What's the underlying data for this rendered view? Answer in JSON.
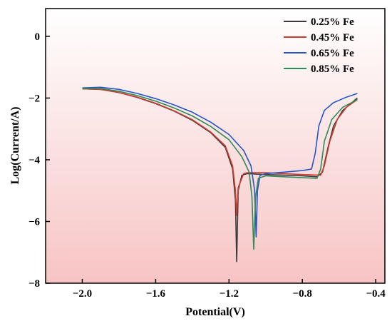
{
  "chart_data": {
    "type": "line",
    "title": "",
    "xlabel": "Potential(V)",
    "ylabel": "Log(Current/A)",
    "xlim": [
      -2.2,
      -0.35
    ],
    "ylim": [
      -8,
      0.9
    ],
    "xticks": [
      -2.0,
      -1.6,
      -1.2,
      -0.8,
      -0.4
    ],
    "xtick_labels": [
      "−2.0",
      "−1.6",
      "−1.2",
      "−0.8",
      "−0.4"
    ],
    "yticks": [
      0,
      -2,
      -4,
      -6,
      -8
    ],
    "ytick_labels": [
      "0",
      "−2",
      "−4",
      "−6",
      "−8"
    ],
    "grid": false,
    "legend_position": "top-right",
    "background": {
      "gradient_top": "#ffffff",
      "gradient_bottom": "#f7c4c4"
    },
    "series": [
      {
        "name": "0.25% Fe",
        "color": "#3a3a3a",
        "points": [
          [
            -2.0,
            -1.7
          ],
          [
            -1.9,
            -1.72
          ],
          [
            -1.8,
            -1.82
          ],
          [
            -1.7,
            -1.98
          ],
          [
            -1.6,
            -2.18
          ],
          [
            -1.5,
            -2.42
          ],
          [
            -1.4,
            -2.72
          ],
          [
            -1.3,
            -3.12
          ],
          [
            -1.22,
            -3.6
          ],
          [
            -1.18,
            -4.3
          ],
          [
            -1.165,
            -5.3
          ],
          [
            -1.158,
            -7.3
          ],
          [
            -1.15,
            -5.0
          ],
          [
            -1.13,
            -4.5
          ],
          [
            -1.1,
            -4.45
          ],
          [
            -1.0,
            -4.48
          ],
          [
            -0.9,
            -4.5
          ],
          [
            -0.8,
            -4.52
          ],
          [
            -0.72,
            -4.55
          ],
          [
            -0.69,
            -4.4
          ],
          [
            -0.66,
            -3.6
          ],
          [
            -0.63,
            -2.9
          ],
          [
            -0.58,
            -2.4
          ],
          [
            -0.5,
            -2.0
          ]
        ]
      },
      {
        "name": "0.45% Fe",
        "color": "#cc3b2e",
        "points": [
          [
            -2.0,
            -1.7
          ],
          [
            -1.9,
            -1.72
          ],
          [
            -1.8,
            -1.82
          ],
          [
            -1.7,
            -1.97
          ],
          [
            -1.6,
            -2.17
          ],
          [
            -1.5,
            -2.41
          ],
          [
            -1.4,
            -2.7
          ],
          [
            -1.3,
            -3.1
          ],
          [
            -1.22,
            -3.55
          ],
          [
            -1.18,
            -4.2
          ],
          [
            -1.165,
            -5.0
          ],
          [
            -1.158,
            -5.8
          ],
          [
            -1.15,
            -4.9
          ],
          [
            -1.12,
            -4.45
          ],
          [
            -1.1,
            -4.42
          ],
          [
            -1.0,
            -4.42
          ],
          [
            -0.9,
            -4.45
          ],
          [
            -0.8,
            -4.48
          ],
          [
            -0.7,
            -4.5
          ],
          [
            -0.68,
            -4.2
          ],
          [
            -0.65,
            -3.4
          ],
          [
            -0.61,
            -2.7
          ],
          [
            -0.56,
            -2.3
          ],
          [
            -0.5,
            -2.05
          ]
        ]
      },
      {
        "name": "0.65% Fe",
        "color": "#2355c7",
        "points": [
          [
            -2.0,
            -1.67
          ],
          [
            -1.9,
            -1.65
          ],
          [
            -1.8,
            -1.72
          ],
          [
            -1.7,
            -1.85
          ],
          [
            -1.6,
            -2.02
          ],
          [
            -1.5,
            -2.22
          ],
          [
            -1.4,
            -2.46
          ],
          [
            -1.3,
            -2.78
          ],
          [
            -1.2,
            -3.18
          ],
          [
            -1.12,
            -3.7
          ],
          [
            -1.08,
            -4.2
          ],
          [
            -1.06,
            -5.0
          ],
          [
            -1.052,
            -6.5
          ],
          [
            -1.045,
            -5.0
          ],
          [
            -1.03,
            -4.5
          ],
          [
            -1.0,
            -4.45
          ],
          [
            -0.9,
            -4.4
          ],
          [
            -0.8,
            -4.35
          ],
          [
            -0.75,
            -4.3
          ],
          [
            -0.73,
            -3.8
          ],
          [
            -0.71,
            -2.9
          ],
          [
            -0.68,
            -2.4
          ],
          [
            -0.63,
            -2.15
          ],
          [
            -0.56,
            -1.97
          ],
          [
            -0.5,
            -1.85
          ]
        ]
      },
      {
        "name": "0.85% Fe",
        "color": "#2e8b57",
        "points": [
          [
            -2.0,
            -1.69
          ],
          [
            -1.9,
            -1.69
          ],
          [
            -1.8,
            -1.78
          ],
          [
            -1.7,
            -1.92
          ],
          [
            -1.6,
            -2.1
          ],
          [
            -1.5,
            -2.32
          ],
          [
            -1.4,
            -2.58
          ],
          [
            -1.3,
            -2.92
          ],
          [
            -1.2,
            -3.35
          ],
          [
            -1.13,
            -3.9
          ],
          [
            -1.09,
            -4.4
          ],
          [
            -1.075,
            -5.2
          ],
          [
            -1.065,
            -6.9
          ],
          [
            -1.055,
            -5.2
          ],
          [
            -1.04,
            -4.6
          ],
          [
            -1.0,
            -4.52
          ],
          [
            -0.9,
            -4.55
          ],
          [
            -0.8,
            -4.58
          ],
          [
            -0.72,
            -4.6
          ],
          [
            -0.7,
            -4.3
          ],
          [
            -0.68,
            -3.4
          ],
          [
            -0.64,
            -2.7
          ],
          [
            -0.58,
            -2.3
          ],
          [
            -0.5,
            -2.05
          ]
        ]
      }
    ]
  }
}
